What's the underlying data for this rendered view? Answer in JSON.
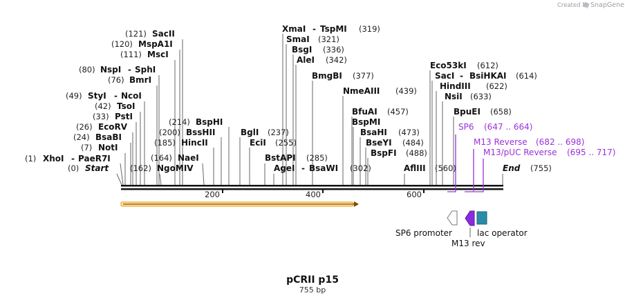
{
  "credit": {
    "created_by": "Created by",
    "brand": "SnapGene"
  },
  "plasmid": {
    "name": "pCRII p15",
    "size": "755 bp"
  },
  "axis": {
    "ticks": [
      "200",
      "400",
      "600"
    ]
  },
  "sites": {
    "sacii": {
      "name": "SacII",
      "pos": "(121)"
    },
    "mspa1i": {
      "name": "MspA1I",
      "pos": "(120)"
    },
    "msci": {
      "name": "MscI",
      "pos": "(111)"
    },
    "nspi": {
      "name": "NspI",
      "pos": "(80)",
      "alt": "SphI"
    },
    "bmri": {
      "name": "BmrI",
      "pos": "(76)"
    },
    "styi": {
      "name": "StyI",
      "pos": "(49)",
      "alt": "NcoI"
    },
    "tsoi": {
      "name": "TsoI",
      "pos": "(42)"
    },
    "psti": {
      "name": "PstI",
      "pos": "(33)"
    },
    "ecorv": {
      "name": "EcoRV",
      "pos": "(26)"
    },
    "bsabi": {
      "name": "BsaBI",
      "pos": "(24)"
    },
    "noti": {
      "name": "NotI",
      "pos": "(7)"
    },
    "xhoi": {
      "name": "XhoI",
      "pos": "(1)",
      "alt": "PaeR7I"
    },
    "start": {
      "name": "Start",
      "pos": "(0)"
    },
    "bsphi": {
      "name": "BspHI",
      "pos": "(214)"
    },
    "bsshii": {
      "name": "BssHII",
      "pos": "(200)"
    },
    "hincii": {
      "name": "HincII",
      "pos": "(185)"
    },
    "naei": {
      "name": "NaeI",
      "pos": "(164)"
    },
    "ngomiv": {
      "name": "NgoMIV",
      "pos": "(162)"
    },
    "bgli": {
      "name": "BglI",
      "pos": "(237)"
    },
    "ecli": {
      "name": "EciI",
      "pos": "(255)"
    },
    "xmai": {
      "name": "XmaI",
      "pos": "(319)",
      "alt": "TspMI"
    },
    "smai": {
      "name": "SmaI",
      "pos": "(321)"
    },
    "bsgi": {
      "name": "BsgI",
      "pos": "(336)"
    },
    "alei": {
      "name": "AleI",
      "pos": "(342)"
    },
    "bmgbi": {
      "name": "BmgBI",
      "pos": "(377)"
    },
    "bstapi": {
      "name": "BstAPI",
      "pos": "(285)"
    },
    "agei": {
      "name": "AgeI",
      "pos": "(302)",
      "alt": "BsaWI"
    },
    "nmeaiii": {
      "name": "NmeAIII",
      "pos": "(439)"
    },
    "bfuai": {
      "name": "BfuAI",
      "pos": "(457)"
    },
    "bspmi": {
      "name": "BspMI"
    },
    "bsahi": {
      "name": "BsaHI",
      "pos": "(473)"
    },
    "bseyi": {
      "name": "BseYI",
      "pos": "(484)"
    },
    "bspfi": {
      "name": "BspFI",
      "pos": "(488)"
    },
    "aflii": {
      "name": "AflIII",
      "pos": "(560)"
    },
    "eco53ki": {
      "name": "Eco53kI",
      "pos": "(612)"
    },
    "saci": {
      "name": "SacI",
      "pos": "(614)",
      "alt": "BsiHKAI"
    },
    "hindiii": {
      "name": "HindIII",
      "pos": "(622)"
    },
    "nsii": {
      "name": "NsiI",
      "pos": "(633)"
    },
    "bpuei": {
      "name": "BpuEI",
      "pos": "(658)"
    },
    "end": {
      "name": "End",
      "pos": "(755)"
    }
  },
  "primers": [
    {
      "name": "SP6",
      "range": "(647 .. 664)"
    },
    {
      "name": "M13 Reverse",
      "range": "(682 .. 698)"
    },
    {
      "name": "M13/pUC Reverse",
      "range": "(695 .. 717)"
    }
  ],
  "features": {
    "sp6_promoter": "SP6 promoter",
    "m13_rev": "M13 rev",
    "lac_operator": "lac operator"
  },
  "colors": {
    "orf": "#f5a623",
    "primer": "#9b30d9",
    "m13": "#8a2be2",
    "lac": "#2a8ca8"
  }
}
